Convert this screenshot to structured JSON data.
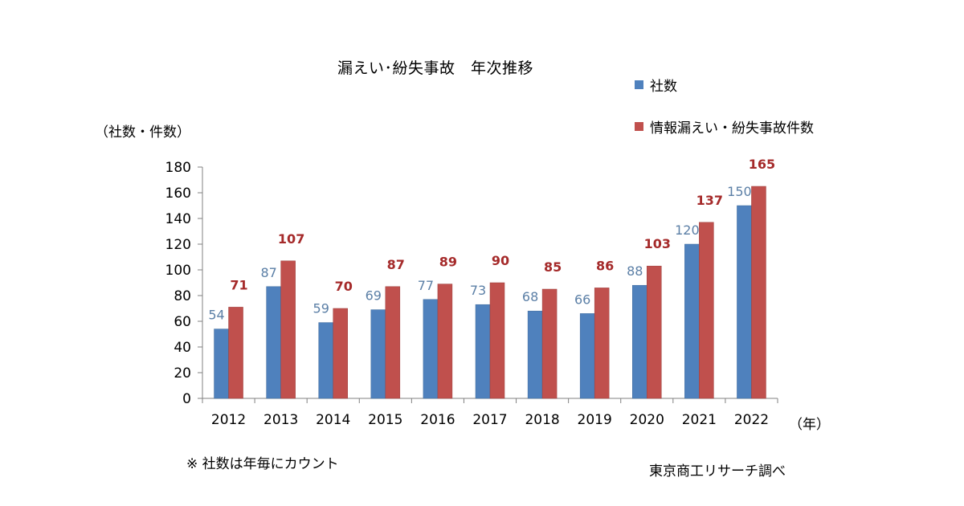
{
  "title": "漏えい･紛失事故　年次推移",
  "ylabel": "（社数・件数）",
  "xunit": "（年）",
  "note": "※ 社数は年毎にカウント",
  "source": "東京商工リサーチ調べ",
  "colors": {
    "series1": "#4f81bd",
    "series2": "#c0504d",
    "label1": "#5b7fa6",
    "label2": "#a52a2a"
  },
  "chart_data": {
    "type": "bar",
    "title": "漏えい･紛失事故　年次推移",
    "xlabel": "（年）",
    "ylabel": "（社数・件数）",
    "ylim": [
      0,
      180
    ],
    "yticks": [
      0,
      20,
      40,
      60,
      80,
      100,
      120,
      140,
      160,
      180
    ],
    "categories": [
      "2012",
      "2013",
      "2014",
      "2015",
      "2016",
      "2017",
      "2018",
      "2019",
      "2020",
      "2021",
      "2022"
    ],
    "series": [
      {
        "name": "社数",
        "values": [
          54,
          87,
          59,
          69,
          77,
          73,
          68,
          66,
          88,
          120,
          150
        ]
      },
      {
        "name": "情報漏えい・紛失事故件数",
        "values": [
          71,
          107,
          70,
          87,
          89,
          90,
          85,
          86,
          103,
          137,
          165
        ]
      }
    ],
    "legend": "top-right",
    "grid": false
  }
}
